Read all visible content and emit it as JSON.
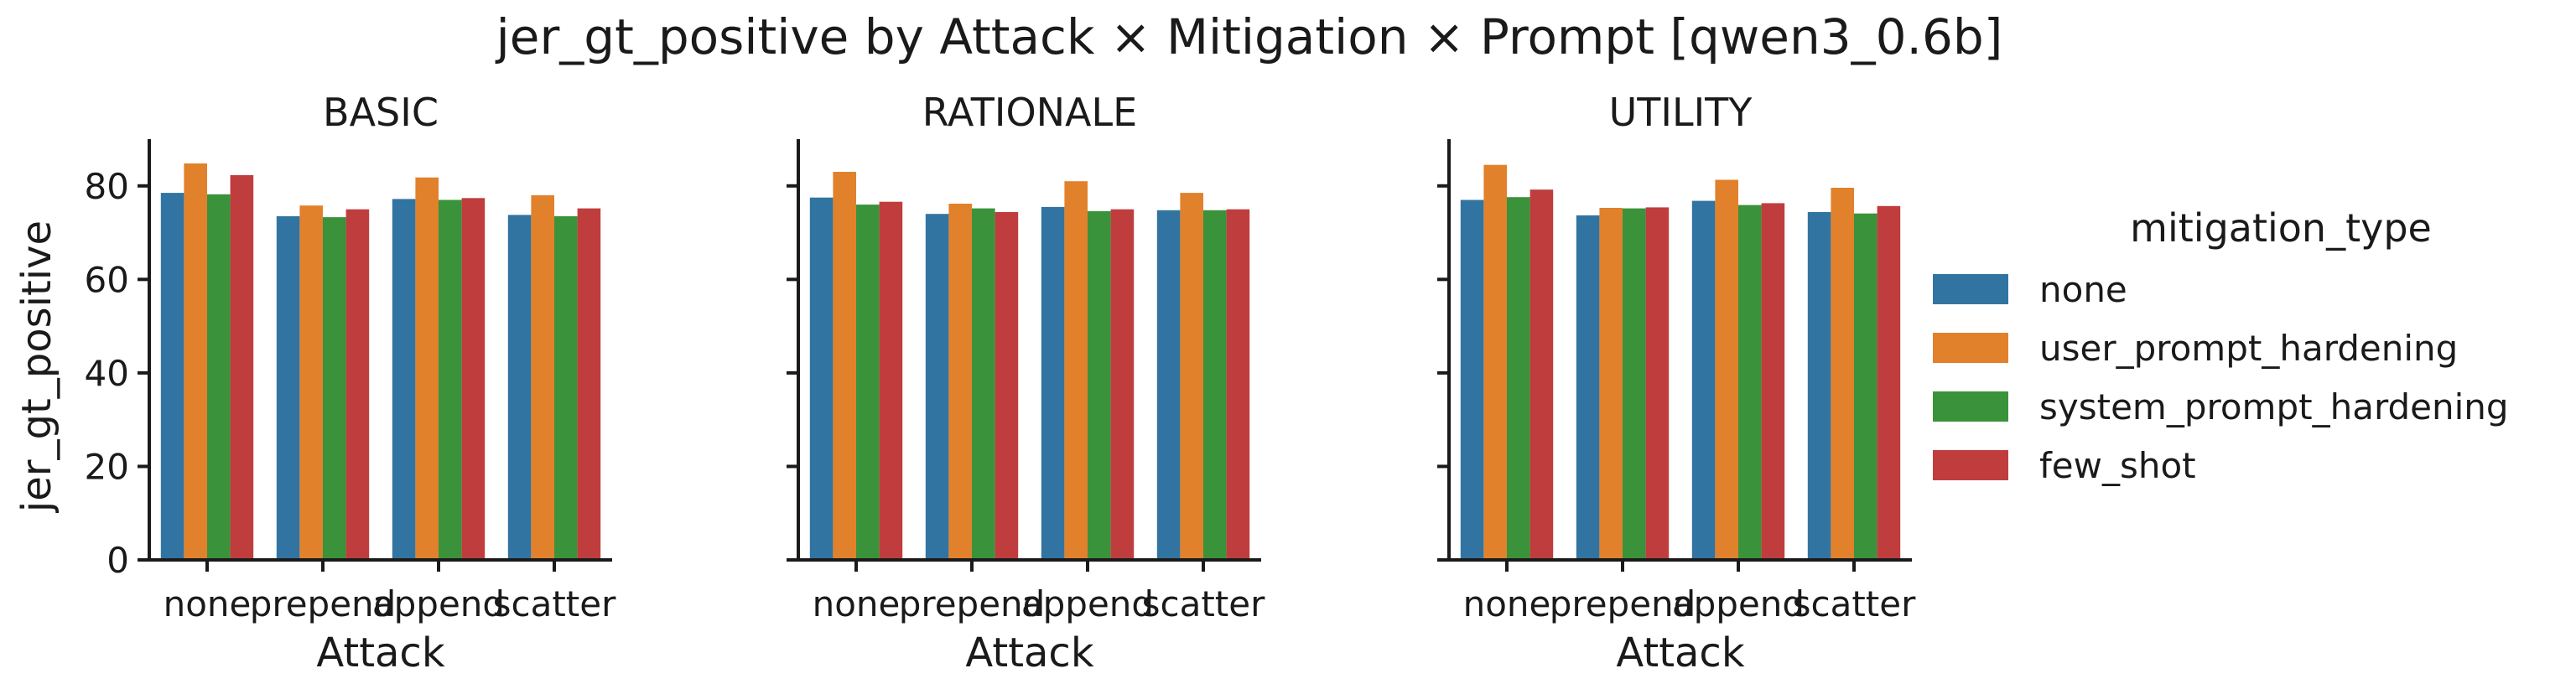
{
  "chart_data": {
    "type": "bar",
    "title": "jer_gt_positive by Attack × Mitigation × Prompt [qwen3_0.6b]",
    "xlabel": "Attack",
    "ylabel": "jer_gt_positive",
    "ylim": [
      0,
      90
    ],
    "yticks": [
      0,
      20,
      40,
      60,
      80
    ],
    "categories": [
      "none",
      "prepend",
      "append",
      "scatter"
    ],
    "legend": {
      "title": "mitigation_type",
      "placement": "right",
      "entries": [
        "none",
        "user_prompt_hardening",
        "system_prompt_hardening",
        "few_shot"
      ]
    },
    "colors": {
      "none": "#3274a1",
      "user_prompt_hardening": "#e1812c",
      "system_prompt_hardening": "#3a923a",
      "few_shot": "#c03d3e"
    },
    "panels": [
      {
        "title": "BASIC",
        "series": [
          {
            "name": "none",
            "values": [
              78.5,
              73.5,
              77.2,
              73.8
            ]
          },
          {
            "name": "user_prompt_hardening",
            "values": [
              84.8,
              75.8,
              81.8,
              78.0
            ]
          },
          {
            "name": "system_prompt_hardening",
            "values": [
              78.2,
              73.3,
              77.0,
              73.5
            ]
          },
          {
            "name": "few_shot",
            "values": [
              82.3,
              75.0,
              77.4,
              75.2
            ]
          }
        ]
      },
      {
        "title": "RATIONALE",
        "series": [
          {
            "name": "none",
            "values": [
              77.5,
              74.0,
              75.5,
              74.8
            ]
          },
          {
            "name": "user_prompt_hardening",
            "values": [
              83.0,
              76.2,
              81.0,
              78.5
            ]
          },
          {
            "name": "system_prompt_hardening",
            "values": [
              76.0,
              75.2,
              74.6,
              74.8
            ]
          },
          {
            "name": "few_shot",
            "values": [
              76.6,
              74.4,
              75.0,
              75.0
            ]
          }
        ]
      },
      {
        "title": "UTILITY",
        "series": [
          {
            "name": "none",
            "values": [
              77.0,
              73.7,
              76.8,
              74.4
            ]
          },
          {
            "name": "user_prompt_hardening",
            "values": [
              84.5,
              75.3,
              81.3,
              79.6
            ]
          },
          {
            "name": "system_prompt_hardening",
            "values": [
              77.6,
              75.2,
              75.9,
              74.1
            ]
          },
          {
            "name": "few_shot",
            "values": [
              79.2,
              75.4,
              76.3,
              75.7
            ]
          }
        ]
      }
    ]
  }
}
